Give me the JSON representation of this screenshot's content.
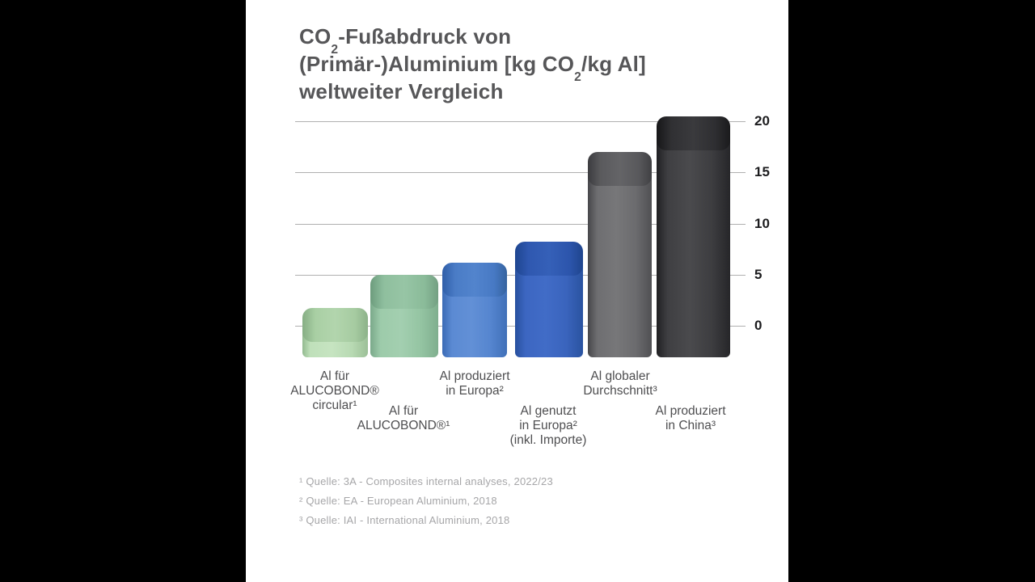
{
  "title": {
    "line1_pre": "CO",
    "line1_sub": "2",
    "line1_post": "-Fußabdruck von",
    "line2_pre": "(Primär-)Aluminium [kg CO",
    "line2_sub": "2",
    "line2_post": "/kg Al]",
    "line3": "weltweiter Vergleich"
  },
  "chart_data": {
    "type": "bar",
    "title": "CO2-Fußabdruck von (Primär-)Aluminium [kg CO2/kg Al] weltweiter Vergleich",
    "unit": "kg CO2 / kg Al",
    "categories": [
      "Al für ALUCOBOND® circular¹",
      "Al für ALUCOBOND®¹",
      "Al produziert in Europa²",
      "Al genutzt in Europa² (inkl. Importe)",
      "Al globaler Durchschnitt³",
      "Al produziert in China³"
    ],
    "category_lines": [
      [
        "Al für",
        "ALUCOBOND®",
        "circular¹"
      ],
      [
        "Al für",
        "ALUCOBOND®¹"
      ],
      [
        "Al produziert",
        "in Europa²"
      ],
      [
        "Al genutzt",
        "in Europa²",
        "(inkl. Importe)"
      ],
      [
        "Al globaler",
        "Durchschnitt³"
      ],
      [
        "Al produziert",
        "in China³"
      ]
    ],
    "values": [
      1.7,
      5.0,
      6.2,
      8.2,
      17.0,
      20.5
    ],
    "yticks": [
      0,
      5,
      10,
      15,
      20
    ],
    "ylim": [
      0,
      21
    ],
    "grid": true,
    "axis_side": "right",
    "legend": "none",
    "bar_colors": [
      "#b9dcb5",
      "#94c4a2",
      "#5585cf",
      "#3a64bd",
      "#6e6e71",
      "#3f3f42"
    ]
  },
  "footnotes": [
    "¹ Quelle: 3A - Composites internal analyses, 2022/23",
    "² Quelle: EA - European Aluminium, 2018",
    "³ Quelle: IAI - International Aluminium, 2018"
  ],
  "colors": {
    "background": "#000000",
    "panel": "#ffffff",
    "title_text": "#565658",
    "grid_line": "#b0b0b0",
    "tick_label": "#1c1c1e",
    "category_label": "#4e4e50",
    "footnote_text": "#a6a6a8"
  }
}
